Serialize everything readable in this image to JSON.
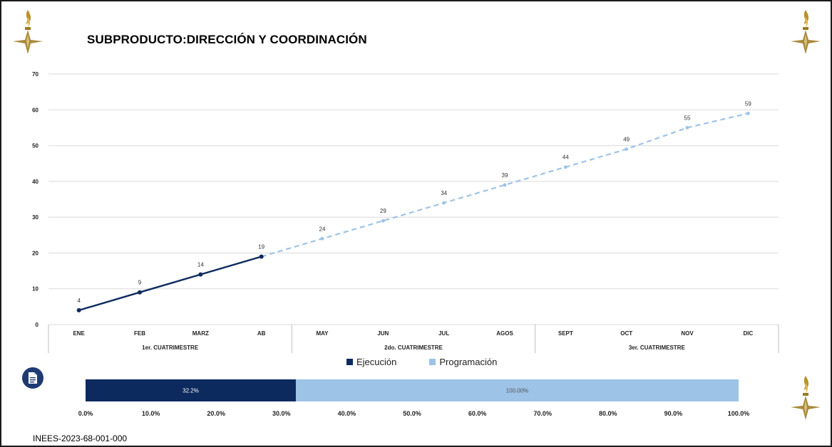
{
  "title": "SUBPRODUCTO:DIRECCIÓN Y COORDINACIÓN",
  "footer_code": "INEES-2023-68-001-000",
  "icons": {
    "emblem": "flame-star-emblem-icon",
    "document": "document-icon"
  },
  "colors": {
    "ejecucion": "#0d2a5e",
    "programacion": "#9dc3e6",
    "grid": "#d9d9d9"
  },
  "chart_data": [
    {
      "type": "line",
      "categories": [
        "ENE",
        "FEB",
        "MARZ",
        "AB",
        "MAY",
        "JUN",
        "JUL",
        "AGOS",
        "SEPT",
        "OCT",
        "NOV",
        "DIC"
      ],
      "groups": [
        {
          "label": "1er. CUATRIMESTRE",
          "categories": [
            "ENE",
            "FEB",
            "MARZ",
            "AB"
          ]
        },
        {
          "label": "2do. CUATRIMESTRE",
          "categories": [
            "MAY",
            "JUN",
            "JUL",
            "AGOS"
          ]
        },
        {
          "label": "3er. CUATRIMESTRE",
          "categories": [
            "SEPT",
            "OCT",
            "NOV",
            "DIC"
          ]
        }
      ],
      "series": [
        {
          "name": "Ejecución",
          "values": [
            4,
            9,
            14,
            19,
            null,
            null,
            null,
            null,
            null,
            null,
            null,
            null
          ],
          "style": "solid",
          "color": "#0d2a5e"
        },
        {
          "name": "Programación",
          "values": [
            null,
            null,
            null,
            19,
            24,
            29,
            34,
            39,
            44,
            49,
            55,
            59
          ],
          "style": "dashed",
          "color": "#9dc3e6"
        }
      ],
      "ylim": [
        0,
        70
      ],
      "yticks": [
        0,
        10,
        20,
        30,
        40,
        50,
        60,
        70
      ],
      "grid": true,
      "legend": "bottom"
    },
    {
      "type": "bar",
      "orientation": "horizontal",
      "series": [
        {
          "name": "Programación",
          "value": 100.0,
          "label": "100.00%",
          "color": "#9dc3e6"
        },
        {
          "name": "Ejecución",
          "value": 32.2,
          "label": "32.2%",
          "color": "#0d2a5e"
        }
      ],
      "xlim": [
        0,
        100
      ],
      "xtick_labels": [
        "0.0%",
        "10.0%",
        "20.0%",
        "30.0%",
        "40.0%",
        "50.0%",
        "60.0%",
        "70.0%",
        "80.0%",
        "90.0%",
        "100.0%"
      ]
    }
  ]
}
